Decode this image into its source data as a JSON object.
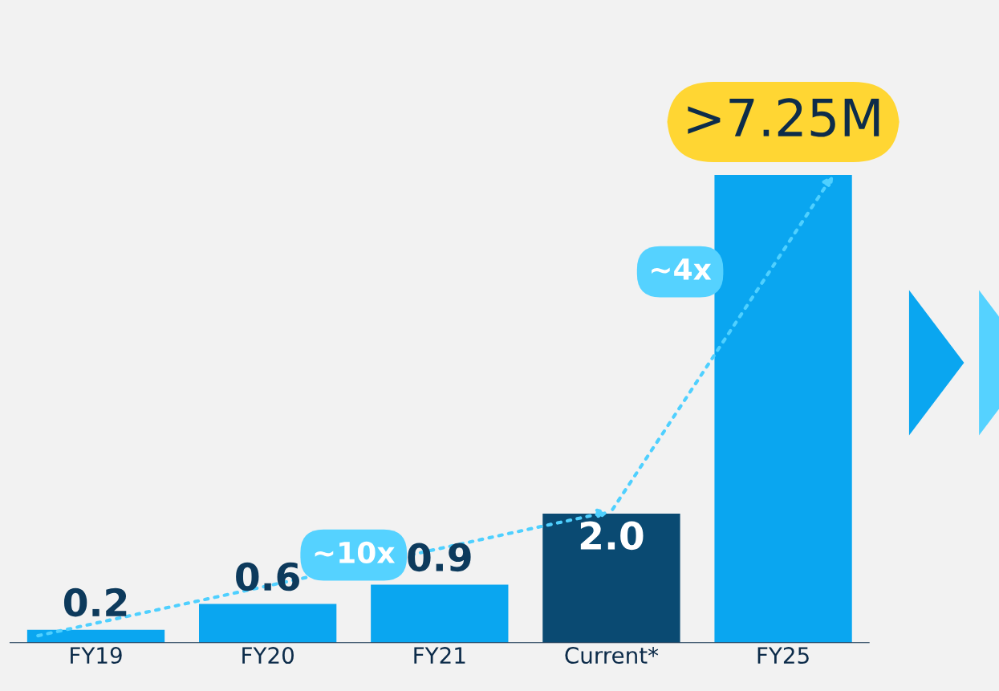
{
  "chart_data": {
    "type": "bar",
    "categories": [
      "FY19",
      "FY20",
      "FY21",
      "Current*",
      "FY25"
    ],
    "values": [
      0.2,
      0.6,
      0.9,
      2.0,
      7.25
    ],
    "colors": [
      "#0aa6f0",
      "#0aa6f0",
      "#0aa6f0",
      "#0a4a72",
      "#0aa6f0"
    ],
    "value_labels": [
      "0.2",
      "0.6",
      "0.9",
      "2.0",
      ">7.25M"
    ],
    "annotations": [
      "~10x",
      "~4x"
    ],
    "grid": false
  }
}
